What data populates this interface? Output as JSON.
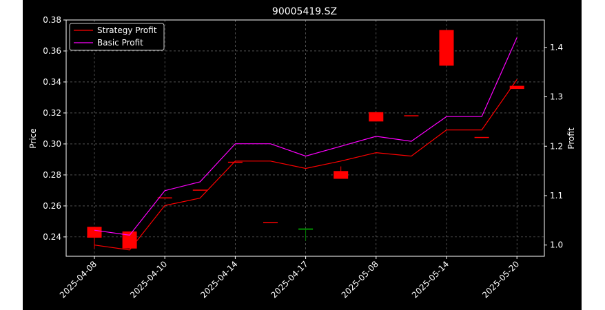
{
  "chart_data": {
    "type": "candlestick+line",
    "title": "90005419.SZ",
    "xlabel": "",
    "ylabel_left": "Price",
    "ylabel_right": "Profit",
    "x_tick_labels": [
      "2025-04-08",
      "2025-04-10",
      "2025-04-14",
      "2025-04-17",
      "2025-05-08",
      "2025-05-14",
      "2025-05-20"
    ],
    "ylim_left": [
      0.2275,
      0.38
    ],
    "ylim_right": [
      0.9773,
      1.4555
    ],
    "y_ticks_left": [
      0.24,
      0.26,
      0.28,
      0.3,
      0.32,
      0.34,
      0.36,
      0.38
    ],
    "y_tick_labels_left": [
      "0.24",
      "0.26",
      "0.28",
      "0.30",
      "0.32",
      "0.34",
      "0.36",
      "0.38"
    ],
    "y_ticks_right": [
      1.0,
      1.1,
      1.2,
      1.3,
      1.4
    ],
    "y_tick_labels_right": [
      "1.0",
      "1.1",
      "1.2",
      "1.3",
      "1.4"
    ],
    "grid": true,
    "legend_position": "top-left",
    "candles": [
      {
        "x": 0,
        "open": 0.2465,
        "close": 0.2395,
        "high": 0.2465,
        "low": 0.2325
      },
      {
        "x": 1,
        "open": 0.2435,
        "close": 0.2325,
        "high": 0.2435,
        "low": 0.2325
      },
      {
        "x": 2,
        "open": 0.2655,
        "close": 0.2655,
        "high": 0.2655,
        "low": 0.2655
      },
      {
        "x": 3,
        "open": 0.2705,
        "close": 0.2705,
        "high": 0.2705,
        "low": 0.2705
      },
      {
        "x": 4,
        "open": 0.2885,
        "close": 0.2885,
        "high": 0.2885,
        "low": 0.2885
      },
      {
        "x": 5,
        "open": 0.2495,
        "close": 0.2495,
        "high": 0.2495,
        "low": 0.2495
      },
      {
        "x": 6,
        "open": 0.2445,
        "close": 0.2455,
        "high": 0.2455,
        "low": 0.2375
      },
      {
        "x": 7,
        "open": 0.2825,
        "close": 0.2775,
        "high": 0.2855,
        "low": 0.2775
      },
      {
        "x": 8,
        "open": 0.3205,
        "close": 0.3145,
        "high": 0.3205,
        "low": 0.3145
      },
      {
        "x": 9,
        "open": 0.3185,
        "close": 0.3185,
        "high": 0.3185,
        "low": 0.3185
      },
      {
        "x": 10,
        "open": 0.3735,
        "close": 0.3505,
        "high": 0.3735,
        "low": 0.3505
      },
      {
        "x": 11,
        "open": 0.3045,
        "close": 0.3045,
        "high": 0.3045,
        "low": 0.3045
      },
      {
        "x": 12,
        "open": 0.3375,
        "close": 0.3355,
        "high": 0.3375,
        "low": 0.3355
      }
    ],
    "series": [
      {
        "name": "Strategy Profit",
        "color": "#ff0000",
        "values": [
          1.0,
          0.99,
          1.08,
          1.095,
          1.17,
          1.17,
          1.155,
          1.17,
          1.187,
          1.18,
          1.233,
          1.233,
          1.335
        ]
      },
      {
        "name": "Basic Profit",
        "color": "#ff00ff",
        "values": [
          1.03,
          1.02,
          1.11,
          1.128,
          1.205,
          1.205,
          1.18,
          1.2,
          1.22,
          1.21,
          1.26,
          1.26,
          1.42
        ]
      }
    ],
    "colors": {
      "background": "#000000",
      "up_candle": "#008000",
      "down_candle": "#ff0000",
      "grid": "#808080",
      "text": "#ffffff"
    }
  }
}
